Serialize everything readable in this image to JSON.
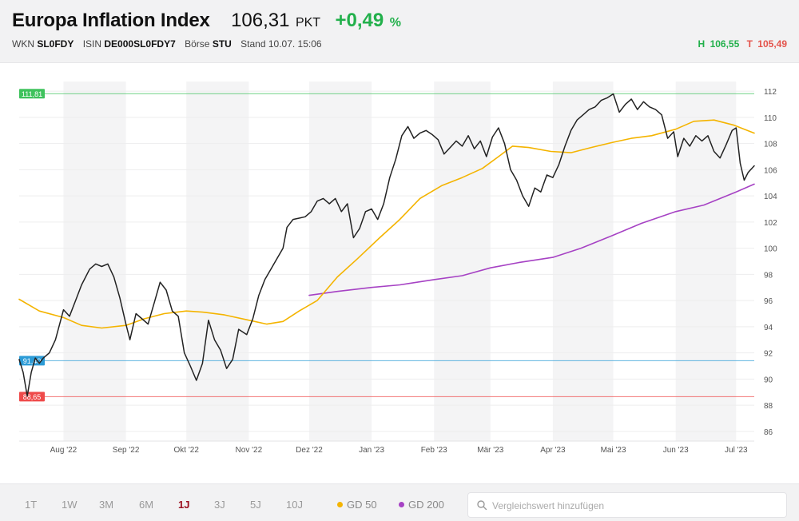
{
  "header": {
    "title": "Europa Inflation Index",
    "price": "106,31",
    "unit": "PKT",
    "change": "+0,49",
    "change_unit": "%",
    "wkn_label": "WKN",
    "wkn": "SL0FDY",
    "isin_label": "ISIN",
    "isin": "DE000SL0FDY7",
    "boerse_label": "Börse",
    "boerse": "STU",
    "stand": "Stand 10.07. 15:06",
    "high_label": "H",
    "high": "106,55",
    "low_label": "T",
    "low": "105,49"
  },
  "colors": {
    "positive": "#22b04b",
    "negative": "#e4534b",
    "price_line": "#222222",
    "gd50": "#f4b400",
    "gd200": "#a642c4",
    "max_line": "#3ec25c",
    "mid_line": "#2c9bd6",
    "min_line": "#ef4a4a",
    "active_period": "#9c1020"
  },
  "footer": {
    "periods": [
      "1T",
      "1W",
      "3M",
      "6M",
      "1J",
      "3J",
      "5J",
      "10J"
    ],
    "active_period": "1J",
    "legend": {
      "gd50": "GD 50",
      "gd200": "GD 200"
    },
    "search_placeholder": "Vergleichswert hinzufügen"
  },
  "chart_data": {
    "type": "line",
    "title": "",
    "xlabel": "",
    "ylabel": "",
    "x_range": [
      "2022-07-10",
      "2023-07-10"
    ],
    "ylim": [
      85.5,
      112.5
    ],
    "y_ticks": [
      86,
      88,
      90,
      92,
      94,
      96,
      98,
      100,
      102,
      104,
      106,
      108,
      110,
      112
    ],
    "x_ticks": [
      {
        "label": "Aug '22",
        "date": "2022-08-01"
      },
      {
        "label": "Sep '22",
        "date": "2022-09-01"
      },
      {
        "label": "Okt '22",
        "date": "2022-10-01"
      },
      {
        "label": "Nov '22",
        "date": "2022-11-01"
      },
      {
        "label": "Dez '22",
        "date": "2022-12-01"
      },
      {
        "label": "Jan '23",
        "date": "2023-01-01"
      },
      {
        "label": "Feb '23",
        "date": "2023-02-01"
      },
      {
        "label": "Mär '23",
        "date": "2023-03-01"
      },
      {
        "label": "Apr '23",
        "date": "2023-04-01"
      },
      {
        "label": "Mai '23",
        "date": "2023-05-01"
      },
      {
        "label": "Jun '23",
        "date": "2023-06-01"
      },
      {
        "label": "Jul '23",
        "date": "2023-07-01"
      }
    ],
    "shaded_months": [
      "2022-08",
      "2022-10",
      "2022-12",
      "2023-02",
      "2023-04",
      "2023-06"
    ],
    "reference_lines": [
      {
        "label": "111,81",
        "value": 111.81,
        "color": "#3ec25c"
      },
      {
        "label": "91,40",
        "value": 91.4,
        "color": "#2c9bd6"
      },
      {
        "label": "88,65",
        "value": 88.65,
        "color": "#ef4a4a"
      }
    ],
    "grid": true,
    "y_axis_position": "right",
    "series": [
      {
        "id": "price",
        "color": "#222222",
        "points": [
          [
            "2022-07-10",
            91.5
          ],
          [
            "2022-07-12",
            90.5
          ],
          [
            "2022-07-14",
            88.7
          ],
          [
            "2022-07-16",
            90.5
          ],
          [
            "2022-07-18",
            91.6
          ],
          [
            "2022-07-20",
            91.2
          ],
          [
            "2022-07-22",
            91.6
          ],
          [
            "2022-07-25",
            92.0
          ],
          [
            "2022-07-28",
            93.0
          ],
          [
            "2022-08-01",
            95.3
          ],
          [
            "2022-08-04",
            94.8
          ],
          [
            "2022-08-07",
            96.0
          ],
          [
            "2022-08-10",
            97.2
          ],
          [
            "2022-08-14",
            98.4
          ],
          [
            "2022-08-17",
            98.8
          ],
          [
            "2022-08-20",
            98.6
          ],
          [
            "2022-08-23",
            98.8
          ],
          [
            "2022-08-26",
            97.8
          ],
          [
            "2022-08-29",
            96.2
          ],
          [
            "2022-09-01",
            94.2
          ],
          [
            "2022-09-03",
            93.0
          ],
          [
            "2022-09-06",
            95.0
          ],
          [
            "2022-09-09",
            94.6
          ],
          [
            "2022-09-12",
            94.2
          ],
          [
            "2022-09-15",
            95.8
          ],
          [
            "2022-09-18",
            97.4
          ],
          [
            "2022-09-21",
            96.8
          ],
          [
            "2022-09-24",
            95.2
          ],
          [
            "2022-09-27",
            94.8
          ],
          [
            "2022-09-30",
            92.0
          ],
          [
            "2022-10-03",
            91.0
          ],
          [
            "2022-10-06",
            89.9
          ],
          [
            "2022-10-09",
            91.2
          ],
          [
            "2022-10-12",
            94.5
          ],
          [
            "2022-10-15",
            93.0
          ],
          [
            "2022-10-18",
            92.2
          ],
          [
            "2022-10-21",
            90.8
          ],
          [
            "2022-10-24",
            91.5
          ],
          [
            "2022-10-27",
            93.8
          ],
          [
            "2022-10-31",
            93.4
          ],
          [
            "2022-11-03",
            94.6
          ],
          [
            "2022-11-06",
            96.4
          ],
          [
            "2022-11-09",
            97.6
          ],
          [
            "2022-11-12",
            98.4
          ],
          [
            "2022-11-15",
            99.2
          ],
          [
            "2022-11-18",
            100.0
          ],
          [
            "2022-11-20",
            101.6
          ],
          [
            "2022-11-23",
            102.2
          ],
          [
            "2022-11-26",
            102.3
          ],
          [
            "2022-11-29",
            102.4
          ],
          [
            "2022-12-02",
            102.8
          ],
          [
            "2022-12-05",
            103.6
          ],
          [
            "2022-12-08",
            103.8
          ],
          [
            "2022-12-11",
            103.4
          ],
          [
            "2022-12-14",
            103.8
          ],
          [
            "2022-12-17",
            102.8
          ],
          [
            "2022-12-20",
            103.4
          ],
          [
            "2022-12-23",
            100.8
          ],
          [
            "2022-12-26",
            101.5
          ],
          [
            "2022-12-29",
            102.8
          ],
          [
            "2023-01-01",
            103.0
          ],
          [
            "2023-01-04",
            102.2
          ],
          [
            "2023-01-07",
            103.4
          ],
          [
            "2023-01-10",
            105.4
          ],
          [
            "2023-01-13",
            106.8
          ],
          [
            "2023-01-16",
            108.6
          ],
          [
            "2023-01-19",
            109.3
          ],
          [
            "2023-01-22",
            108.4
          ],
          [
            "2023-01-25",
            108.8
          ],
          [
            "2023-01-28",
            109.0
          ],
          [
            "2023-01-31",
            108.7
          ],
          [
            "2023-02-03",
            108.3
          ],
          [
            "2023-02-06",
            107.2
          ],
          [
            "2023-02-09",
            107.7
          ],
          [
            "2023-02-12",
            108.2
          ],
          [
            "2023-02-15",
            107.8
          ],
          [
            "2023-02-18",
            108.6
          ],
          [
            "2023-02-21",
            107.6
          ],
          [
            "2023-02-24",
            108.2
          ],
          [
            "2023-02-27",
            107.0
          ],
          [
            "2023-03-02",
            108.5
          ],
          [
            "2023-03-05",
            109.2
          ],
          [
            "2023-03-08",
            108.0
          ],
          [
            "2023-03-11",
            106.0
          ],
          [
            "2023-03-14",
            105.2
          ],
          [
            "2023-03-17",
            104.0
          ],
          [
            "2023-03-20",
            103.2
          ],
          [
            "2023-03-23",
            104.6
          ],
          [
            "2023-03-26",
            104.3
          ],
          [
            "2023-03-29",
            105.6
          ],
          [
            "2023-04-01",
            105.4
          ],
          [
            "2023-04-04",
            106.4
          ],
          [
            "2023-04-07",
            107.8
          ],
          [
            "2023-04-10",
            109.0
          ],
          [
            "2023-04-13",
            109.8
          ],
          [
            "2023-04-16",
            110.2
          ],
          [
            "2023-04-19",
            110.6
          ],
          [
            "2023-04-22",
            110.8
          ],
          [
            "2023-04-25",
            111.3
          ],
          [
            "2023-04-28",
            111.5
          ],
          [
            "2023-05-01",
            111.8
          ],
          [
            "2023-05-04",
            110.4
          ],
          [
            "2023-05-07",
            111.0
          ],
          [
            "2023-05-10",
            111.4
          ],
          [
            "2023-05-13",
            110.6
          ],
          [
            "2023-05-16",
            111.2
          ],
          [
            "2023-05-19",
            110.8
          ],
          [
            "2023-05-22",
            110.6
          ],
          [
            "2023-05-25",
            110.2
          ],
          [
            "2023-05-28",
            108.4
          ],
          [
            "2023-05-31",
            108.9
          ],
          [
            "2023-06-02",
            107.0
          ],
          [
            "2023-06-05",
            108.4
          ],
          [
            "2023-06-08",
            107.8
          ],
          [
            "2023-06-11",
            108.6
          ],
          [
            "2023-06-14",
            108.2
          ],
          [
            "2023-06-17",
            108.6
          ],
          [
            "2023-06-20",
            107.4
          ],
          [
            "2023-06-23",
            106.9
          ],
          [
            "2023-06-26",
            107.9
          ],
          [
            "2023-06-29",
            109.0
          ],
          [
            "2023-07-01",
            109.2
          ],
          [
            "2023-07-03",
            106.5
          ],
          [
            "2023-07-05",
            105.2
          ],
          [
            "2023-07-07",
            105.8
          ],
          [
            "2023-07-10",
            106.3
          ]
        ]
      },
      {
        "id": "gd50",
        "name": "GD 50",
        "color": "#f4b400",
        "points": [
          [
            "2022-07-10",
            96.1
          ],
          [
            "2022-07-20",
            95.2
          ],
          [
            "2022-08-01",
            94.7
          ],
          [
            "2022-08-10",
            94.1
          ],
          [
            "2022-08-20",
            93.9
          ],
          [
            "2022-09-01",
            94.1
          ],
          [
            "2022-09-10",
            94.6
          ],
          [
            "2022-09-20",
            95.0
          ],
          [
            "2022-10-01",
            95.2
          ],
          [
            "2022-10-10",
            95.1
          ],
          [
            "2022-10-20",
            94.9
          ],
          [
            "2022-11-01",
            94.5
          ],
          [
            "2022-11-10",
            94.2
          ],
          [
            "2022-11-18",
            94.4
          ],
          [
            "2022-11-26",
            95.2
          ],
          [
            "2022-12-05",
            96.0
          ],
          [
            "2022-12-15",
            97.8
          ],
          [
            "2022-12-25",
            99.2
          ],
          [
            "2023-01-05",
            100.8
          ],
          [
            "2023-01-15",
            102.2
          ],
          [
            "2023-01-25",
            103.8
          ],
          [
            "2023-02-05",
            104.8
          ],
          [
            "2023-02-15",
            105.4
          ],
          [
            "2023-02-25",
            106.1
          ],
          [
            "2023-03-05",
            107.0
          ],
          [
            "2023-03-12",
            107.8
          ],
          [
            "2023-03-20",
            107.7
          ],
          [
            "2023-03-31",
            107.4
          ],
          [
            "2023-04-10",
            107.3
          ],
          [
            "2023-04-20",
            107.7
          ],
          [
            "2023-05-01",
            108.1
          ],
          [
            "2023-05-10",
            108.4
          ],
          [
            "2023-05-20",
            108.6
          ],
          [
            "2023-06-01",
            109.1
          ],
          [
            "2023-06-10",
            109.7
          ],
          [
            "2023-06-20",
            109.8
          ],
          [
            "2023-06-30",
            109.4
          ],
          [
            "2023-07-10",
            108.8
          ]
        ]
      },
      {
        "id": "gd200",
        "name": "GD 200",
        "color": "#a642c4",
        "points": [
          [
            "2022-12-01",
            96.4
          ],
          [
            "2022-12-15",
            96.7
          ],
          [
            "2023-01-01",
            97.0
          ],
          [
            "2023-01-15",
            97.2
          ],
          [
            "2023-02-01",
            97.6
          ],
          [
            "2023-02-15",
            97.9
          ],
          [
            "2023-03-01",
            98.5
          ],
          [
            "2023-03-15",
            98.9
          ],
          [
            "2023-04-01",
            99.3
          ],
          [
            "2023-04-15",
            100.0
          ],
          [
            "2023-05-01",
            101.0
          ],
          [
            "2023-05-15",
            101.9
          ],
          [
            "2023-06-01",
            102.8
          ],
          [
            "2023-06-15",
            103.3
          ],
          [
            "2023-07-01",
            104.3
          ],
          [
            "2023-07-10",
            104.9
          ]
        ]
      }
    ]
  }
}
